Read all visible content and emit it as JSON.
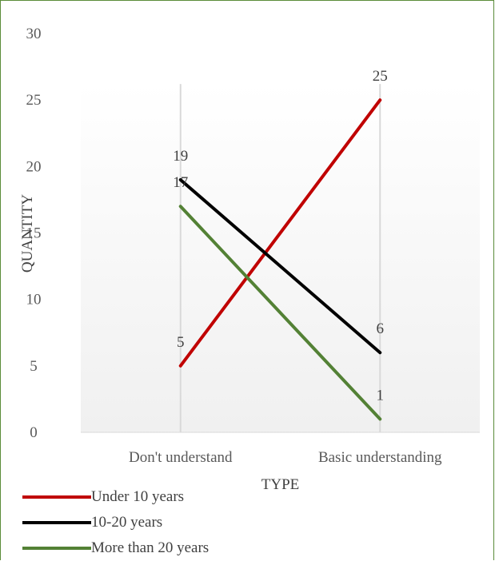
{
  "chart_data": {
    "type": "line",
    "xlabel": "TYPE",
    "ylabel": "QUANTITY",
    "categories": [
      "Don't understand",
      "Basic understanding"
    ],
    "ylim": [
      0,
      30
    ],
    "yticks": [
      0,
      5,
      10,
      15,
      20,
      25,
      30
    ],
    "grid": "vertical category lines",
    "legend_position": "bottom-left",
    "series": [
      {
        "name": "Under 10 years",
        "values": [
          5,
          25
        ],
        "color": "#c00000"
      },
      {
        "name": "10-20 years",
        "values": [
          19,
          6
        ],
        "color": "#000000"
      },
      {
        "name": "More than 20 years",
        "values": [
          17,
          1
        ],
        "color": "#538135"
      }
    ]
  }
}
